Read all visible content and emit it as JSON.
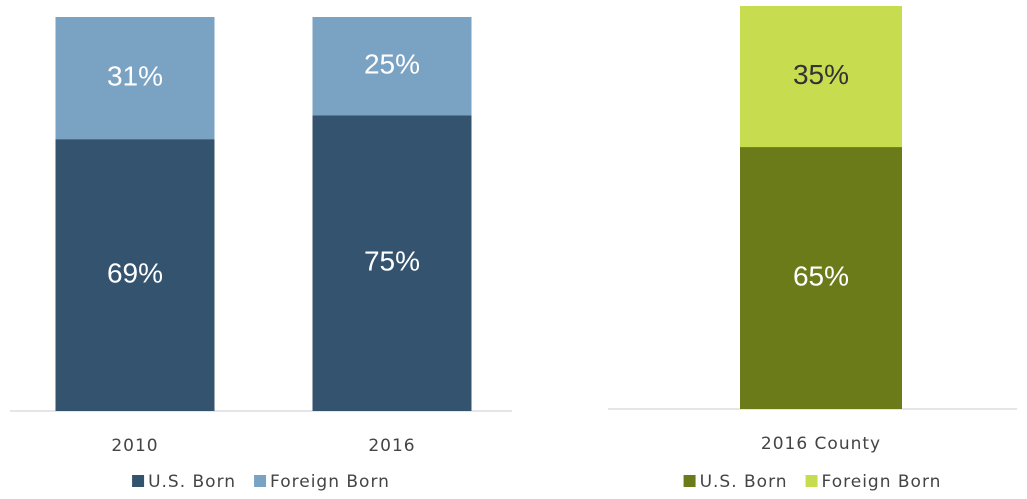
{
  "chart_data": [
    {
      "type": "stacked_bar",
      "categories": [
        "2010",
        "2016"
      ],
      "series": [
        {
          "name": "U.S. Born",
          "color": "#34536f",
          "values": [
            69,
            75
          ],
          "value_labels": [
            "69%",
            "75%"
          ]
        },
        {
          "name": "Foreign Born",
          "color": "#7aa2c3",
          "values": [
            31,
            25
          ],
          "value_labels": [
            "31%",
            "25%"
          ]
        }
      ]
    },
    {
      "type": "stacked_bar",
      "categories": [
        "2016 County"
      ],
      "series": [
        {
          "name": "U.S. Born",
          "color": "#6b7b1a",
          "values": [
            65
          ],
          "value_labels": [
            "65%"
          ]
        },
        {
          "name": "Foreign Born",
          "color": "#c8dc50",
          "values": [
            35
          ],
          "value_labels": [
            "35%"
          ]
        }
      ]
    }
  ]
}
